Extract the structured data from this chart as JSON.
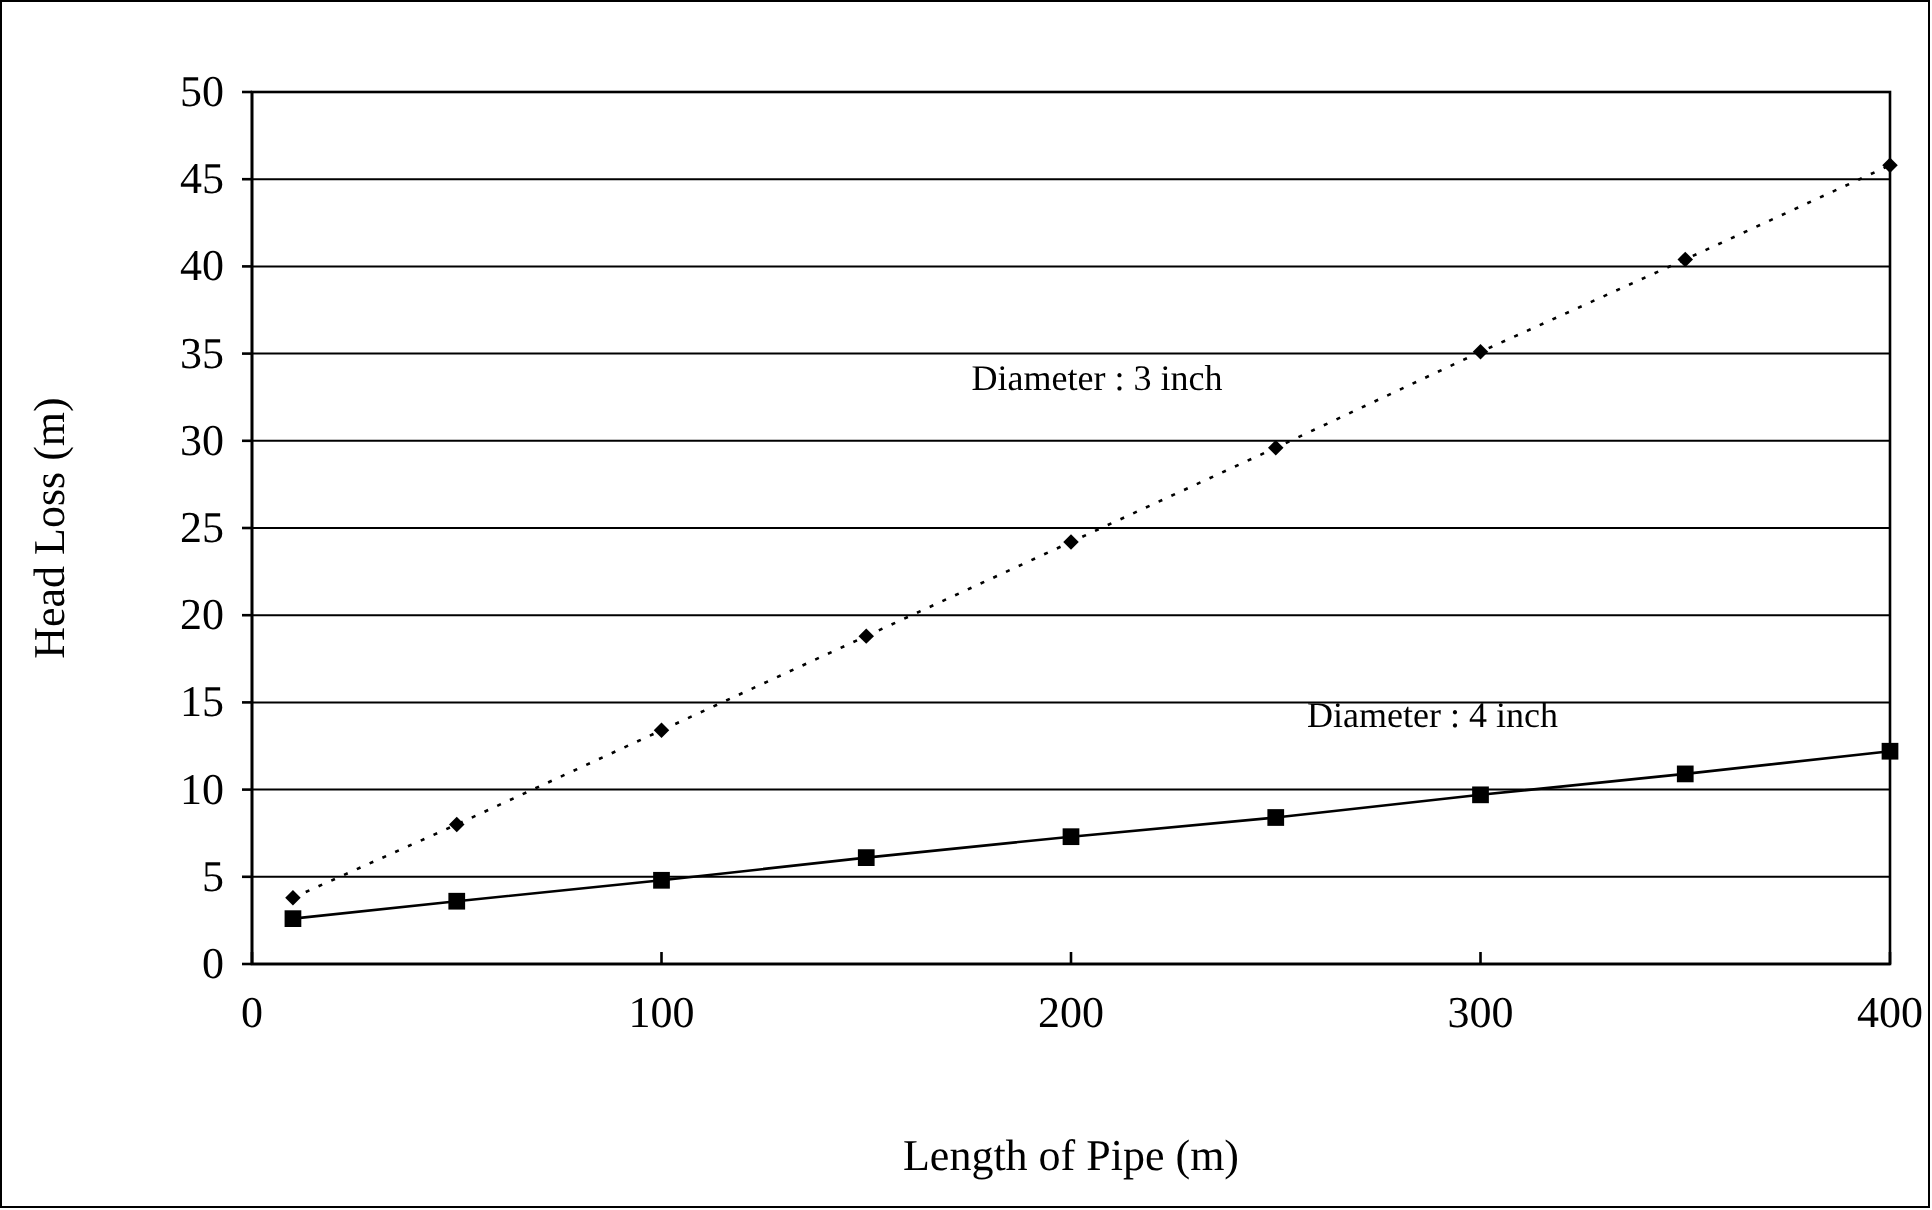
{
  "chart_data": {
    "type": "line",
    "xlabel": "Length of Pipe (m)",
    "ylabel": "Head Loss (m)",
    "x": [
      10,
      50,
      100,
      150,
      200,
      250,
      300,
      350,
      400
    ],
    "series": [
      {
        "name": "Diameter : 3 inch",
        "color": "#000000",
        "marker": "diamond",
        "line_style": "dotted",
        "values": [
          3.8,
          8.0,
          13.4,
          18.8,
          24.2,
          29.6,
          35.1,
          40.4,
          45.8
        ]
      },
      {
        "name": "Diameter : 4 inch",
        "color": "#000000",
        "marker": "square",
        "line_style": "solid",
        "values": [
          2.6,
          3.6,
          4.8,
          6.1,
          7.3,
          8.4,
          9.7,
          10.9,
          12.2
        ]
      }
    ],
    "xlim": [
      0,
      400
    ],
    "xticks": [
      0,
      100,
      200,
      300,
      400
    ],
    "ylim": [
      0,
      50
    ],
    "yticks": [
      0,
      5,
      10,
      15,
      20,
      25,
      30,
      35,
      40,
      45,
      50
    ],
    "grid": "y"
  }
}
